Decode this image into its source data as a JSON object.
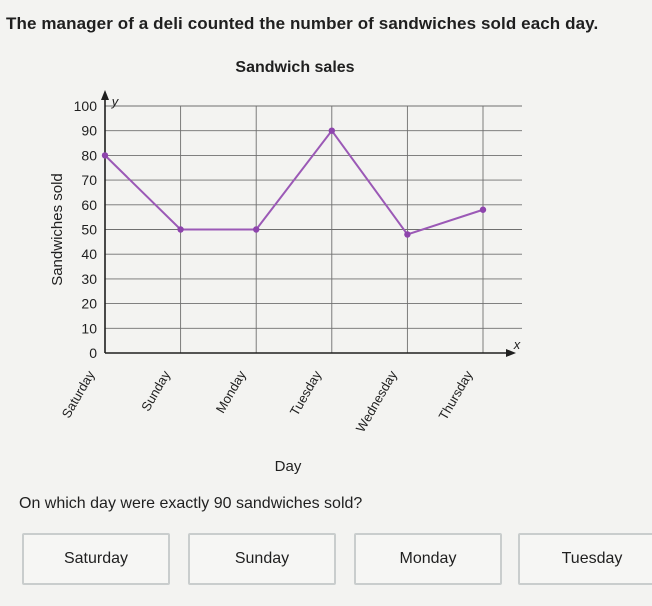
{
  "question": {
    "text": "The manager of a deli counted the number of sandwiches sold each day.",
    "prompt": "On which day were exactly 90 sandwiches sold?"
  },
  "answers": [
    {
      "label": "Saturday"
    },
    {
      "label": "Sunday"
    },
    {
      "label": "Monday"
    },
    {
      "label": "Tuesday"
    }
  ],
  "colors": {
    "line": "#9b59b6",
    "point": "#8e44ad",
    "grid": "#6f6f6f",
    "axis": "#1f1f1f"
  },
  "chart_data": {
    "type": "line",
    "title": "Sandwich sales",
    "xlabel": "Day",
    "ylabel": "Sandwiches sold",
    "x_axis_letter": "x",
    "y_axis_letter": "y",
    "categories": [
      "Saturday",
      "Sunday",
      "Monday",
      "Tuesday",
      "Wednesday",
      "Thursday"
    ],
    "values": [
      80,
      50,
      50,
      90,
      48,
      58
    ],
    "ylim": [
      0,
      100
    ],
    "yticks": [
      0,
      10,
      20,
      30,
      40,
      50,
      60,
      70,
      80,
      90,
      100
    ],
    "grid": true
  }
}
